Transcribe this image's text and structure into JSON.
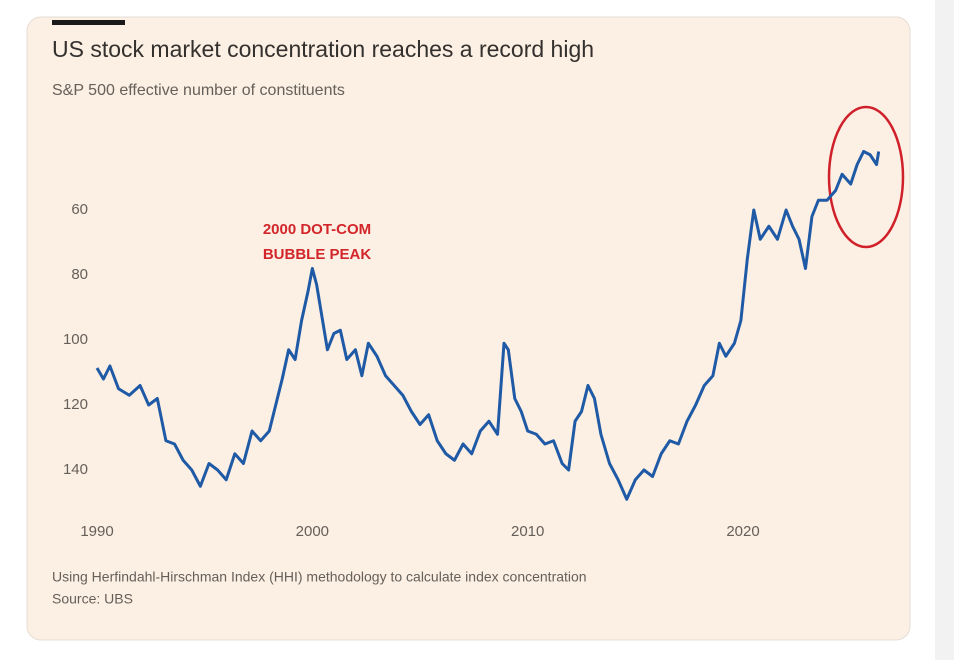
{
  "chart_data": {
    "type": "line",
    "title": "US stock market concentration reaches a record high",
    "subtitle": "S&P 500 effective number of constituents",
    "annotation": [
      "2000 DOT-COM",
      "BUBBLE PEAK"
    ],
    "notes": [
      "Using Herfindahl-Hirschman Index (HHI) methodology to calculate index concentration",
      "Source: UBS"
    ],
    "xlim": [
      1990,
      2026.5
    ],
    "xticks": [
      1990,
      2000,
      2010,
      2020
    ],
    "ylim": [
      35,
      150
    ],
    "yticks": [
      60,
      80,
      100,
      120,
      140
    ],
    "y_inverted": true,
    "grid": false,
    "x": [
      1990.0,
      1990.3,
      1990.6,
      1991.0,
      1991.5,
      1992.0,
      1992.4,
      1992.8,
      1993.2,
      1993.6,
      1994.0,
      1994.4,
      1994.8,
      1995.2,
      1995.6,
      1996.0,
      1996.4,
      1996.8,
      1997.2,
      1997.6,
      1998.0,
      1998.3,
      1998.6,
      1998.9,
      1999.2,
      1999.5,
      1999.8,
      2000.0,
      2000.2,
      2000.4,
      2000.7,
      2001.0,
      2001.3,
      2001.6,
      2002.0,
      2002.3,
      2002.6,
      2003.0,
      2003.4,
      2003.8,
      2004.2,
      2004.6,
      2005.0,
      2005.4,
      2005.8,
      2006.2,
      2006.6,
      2007.0,
      2007.4,
      2007.8,
      2008.2,
      2008.6,
      2008.9,
      2009.1,
      2009.4,
      2009.7,
      2010.0,
      2010.4,
      2010.8,
      2011.2,
      2011.6,
      2011.9,
      2012.2,
      2012.5,
      2012.8,
      2013.1,
      2013.4,
      2013.8,
      2014.2,
      2014.6,
      2015.0,
      2015.4,
      2015.8,
      2016.2,
      2016.6,
      2017.0,
      2017.4,
      2017.8,
      2018.2,
      2018.6,
      2018.9,
      2019.2,
      2019.6,
      2019.9,
      2020.2,
      2020.5,
      2020.8,
      2021.2,
      2021.6,
      2022.0,
      2022.3,
      2022.6,
      2022.9,
      2023.2,
      2023.5,
      2023.9,
      2024.3,
      2024.6,
      2025.0,
      2025.3,
      2025.6,
      2025.9,
      2026.2,
      2026.3
    ],
    "series": [
      {
        "color": "#1f5aa6",
        "values": [
          108.6,
          112,
          108,
          115,
          117,
          114,
          120,
          118,
          131,
          132,
          137,
          140,
          145,
          138,
          140,
          143,
          135,
          138,
          128,
          131,
          128,
          120,
          112,
          103,
          106,
          94,
          85,
          78,
          83,
          91,
          103,
          98,
          97,
          106,
          103,
          111,
          101,
          105,
          111,
          114,
          117,
          122,
          126,
          123,
          131,
          135,
          137,
          132,
          135,
          128,
          125,
          129,
          101,
          103,
          118,
          122,
          128,
          129,
          132,
          131,
          138,
          140,
          125,
          122,
          114,
          118,
          129,
          138,
          143,
          149,
          143,
          140,
          142,
          135,
          131,
          132,
          125,
          120,
          114,
          111,
          101,
          105,
          101,
          94,
          75,
          60,
          69,
          65,
          69,
          60,
          65,
          69,
          78,
          62,
          57,
          57,
          54,
          49,
          52,
          46,
          42,
          43,
          46,
          42
        ]
      }
    ]
  }
}
